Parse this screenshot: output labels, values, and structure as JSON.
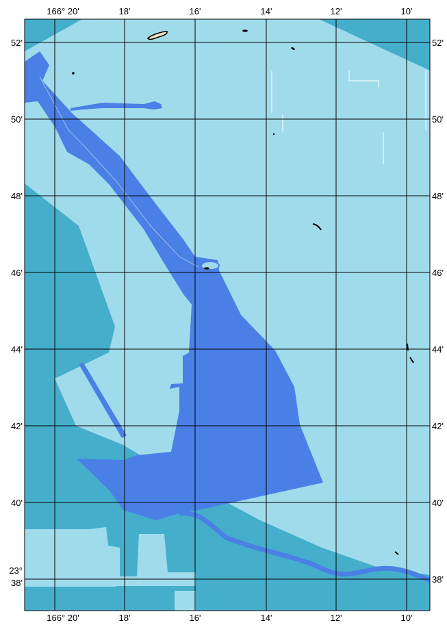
{
  "map": {
    "colors": {
      "shallow": "#a0dbec",
      "mid": "#45aecb",
      "deep": "#4a80e6",
      "grid": "#000000",
      "land": "#f3dfb9",
      "frame": "#000000",
      "white": "#ffffff"
    },
    "top_labels": [
      "166° 20'",
      "18'",
      "16'",
      "14'",
      "12'",
      "10'"
    ],
    "bottom_labels": [
      "166° 20'",
      "18'",
      "16'",
      "14'",
      "12'",
      "10'"
    ],
    "left_labels": [
      "52'",
      "50'",
      "48'",
      "46'",
      "44'",
      "42'",
      "40'"
    ],
    "left_label_bottom": [
      "23°",
      "38'"
    ],
    "right_labels": [
      "52'",
      "50'",
      "48'",
      "46'",
      "44'",
      "42'",
      "40'",
      "38'"
    ]
  }
}
